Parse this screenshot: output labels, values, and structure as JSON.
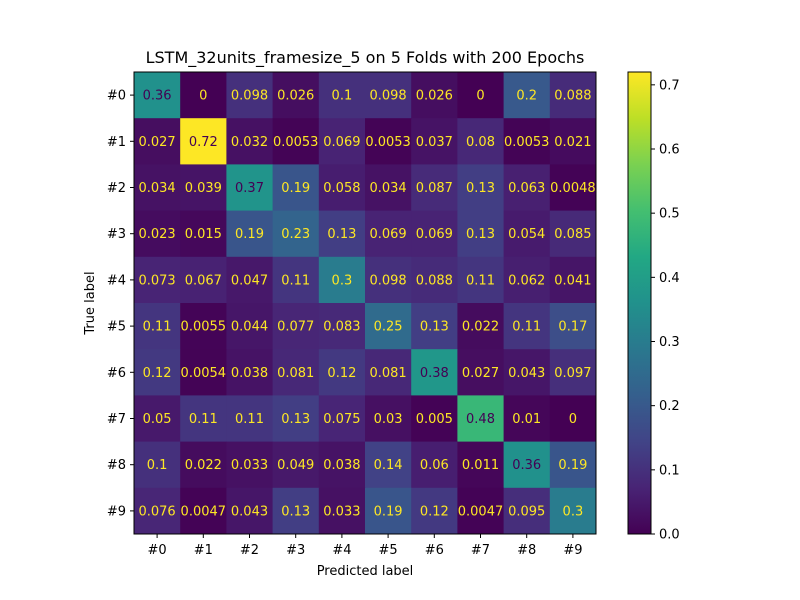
{
  "chart_data": {
    "type": "heatmap",
    "title": "LSTM_32units_framesize_5 on 5 Folds with 200 Epochs",
    "xlabel": "Predicted label",
    "ylabel": "True label",
    "x_categories": [
      "#0",
      "#1",
      "#2",
      "#3",
      "#4",
      "#5",
      "#6",
      "#7",
      "#8",
      "#9"
    ],
    "y_categories": [
      "#0",
      "#1",
      "#2",
      "#3",
      "#4",
      "#5",
      "#6",
      "#7",
      "#8",
      "#9"
    ],
    "values": [
      [
        0.36,
        0,
        0.098,
        0.026,
        0.1,
        0.098,
        0.026,
        0,
        0.2,
        0.088
      ],
      [
        0.027,
        0.72,
        0.032,
        0.0053,
        0.069,
        0.0053,
        0.037,
        0.08,
        0.0053,
        0.021
      ],
      [
        0.034,
        0.039,
        0.37,
        0.19,
        0.058,
        0.034,
        0.087,
        0.13,
        0.063,
        0.0048
      ],
      [
        0.023,
        0.015,
        0.19,
        0.23,
        0.13,
        0.069,
        0.069,
        0.13,
        0.054,
        0.085
      ],
      [
        0.073,
        0.067,
        0.047,
        0.11,
        0.3,
        0.098,
        0.088,
        0.11,
        0.062,
        0.041
      ],
      [
        0.11,
        0.0055,
        0.044,
        0.077,
        0.083,
        0.25,
        0.13,
        0.022,
        0.11,
        0.17
      ],
      [
        0.12,
        0.0054,
        0.038,
        0.081,
        0.12,
        0.081,
        0.38,
        0.027,
        0.043,
        0.097
      ],
      [
        0.05,
        0.11,
        0.11,
        0.13,
        0.075,
        0.03,
        0.005,
        0.48,
        0.01,
        0
      ],
      [
        0.1,
        0.022,
        0.033,
        0.049,
        0.038,
        0.14,
        0.06,
        0.011,
        0.36,
        0.19
      ],
      [
        0.076,
        0.0047,
        0.043,
        0.13,
        0.033,
        0.19,
        0.12,
        0.0047,
        0.095,
        0.3
      ]
    ],
    "labels": [
      [
        "0.36",
        "0",
        "0.098",
        "0.026",
        "0.1",
        "0.098",
        "0.026",
        "0",
        "0.2",
        "0.088"
      ],
      [
        "0.027",
        "0.72",
        "0.032",
        "0.0053",
        "0.069",
        "0.0053",
        "0.037",
        "0.08",
        "0.0053",
        "0.021"
      ],
      [
        "0.034",
        "0.039",
        "0.37",
        "0.19",
        "0.058",
        "0.034",
        "0.087",
        "0.13",
        "0.063",
        "0.0048"
      ],
      [
        "0.023",
        "0.015",
        "0.19",
        "0.23",
        "0.13",
        "0.069",
        "0.069",
        "0.13",
        "0.054",
        "0.085"
      ],
      [
        "0.073",
        "0.067",
        "0.047",
        "0.11",
        "0.3",
        "0.098",
        "0.088",
        "0.11",
        "0.062",
        "0.041"
      ],
      [
        "0.11",
        "0.0055",
        "0.044",
        "0.077",
        "0.083",
        "0.25",
        "0.13",
        "0.022",
        "0.11",
        "0.17"
      ],
      [
        "0.12",
        "0.0054",
        "0.038",
        "0.081",
        "0.12",
        "0.081",
        "0.38",
        "0.027",
        "0.043",
        "0.097"
      ],
      [
        "0.05",
        "0.11",
        "0.11",
        "0.13",
        "0.075",
        "0.03",
        "0.005",
        "0.48",
        "0.01",
        "0"
      ],
      [
        "0.1",
        "0.022",
        "0.033",
        "0.049",
        "0.038",
        "0.14",
        "0.06",
        "0.011",
        "0.36",
        "0.19"
      ],
      [
        "0.076",
        "0.0047",
        "0.043",
        "0.13",
        "0.033",
        "0.19",
        "0.12",
        "0.0047",
        "0.095",
        "0.3"
      ]
    ],
    "colormap": "viridis",
    "colorbar": {
      "vmin": 0,
      "vmax": 0.72,
      "ticks": [
        0.0,
        0.1,
        0.2,
        0.3,
        0.4,
        0.5,
        0.6,
        0.7
      ],
      "tick_labels": [
        "0.0",
        "0.1",
        "0.2",
        "0.3",
        "0.4",
        "0.5",
        "0.6",
        "0.7"
      ]
    },
    "text_colors": {
      "light": "#fde725",
      "dark": "#440154"
    },
    "grid": false
  }
}
